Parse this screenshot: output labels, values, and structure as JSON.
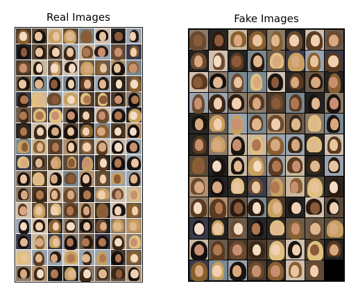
{
  "titles": {
    "real": "Real Images",
    "fake": "Fake Images"
  },
  "grids": {
    "real": {
      "rows": 16,
      "cols": 8,
      "gap_color": "#ffffff"
    },
    "fake": {
      "rows": 12,
      "cols": 8,
      "gap_color": "#000000"
    }
  },
  "palettes": {
    "bg": [
      "#6b5a4a",
      "#2a2622",
      "#8a7a6a",
      "#c8b8a0",
      "#3a3a48",
      "#9aa4b0",
      "#5a4a3a",
      "#b09070",
      "#222222",
      "#7a8890",
      "#d0c0b0",
      "#4a3828"
    ],
    "skin": [
      "#e8c4a0",
      "#d8a880",
      "#c89070",
      "#f0d0b0",
      "#b07850",
      "#e0b890",
      "#8a5a3a",
      "#f4dcc4"
    ],
    "hair": [
      "#2a1a10",
      "#5a3a20",
      "#1a1410",
      "#8a6030",
      "#c8a060",
      "#3a2818",
      "#e0c080",
      "#6a4a30",
      "#141010"
    ]
  }
}
